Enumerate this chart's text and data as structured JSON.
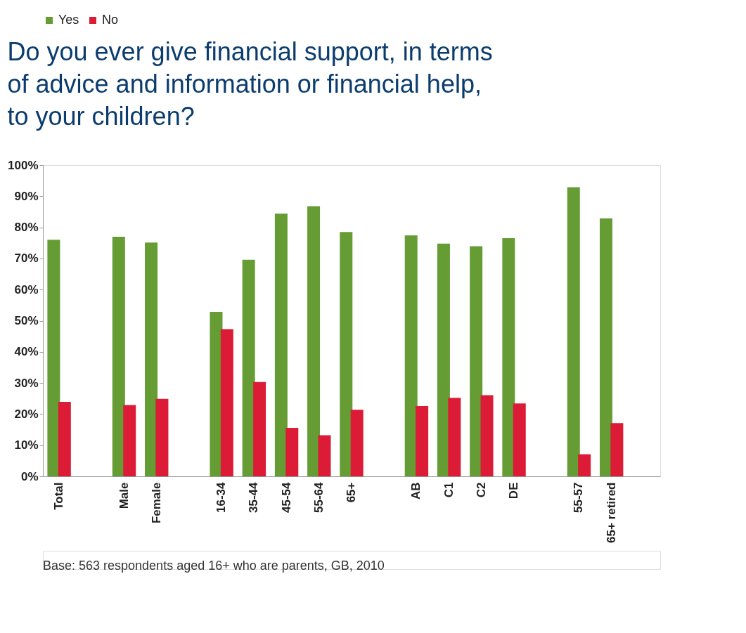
{
  "chart_data": {
    "type": "bar",
    "title": "Do you ever give financial support, in terms of advice and information or financial help, to your children?",
    "categories": [
      "Total",
      null,
      "Male",
      "Female",
      null,
      "16-34",
      "35-44",
      "45-54",
      "55-64",
      "65+",
      null,
      "AB",
      "C1",
      "C2",
      "DE",
      null,
      "55-57",
      "65+ retired",
      null
    ],
    "series": [
      {
        "name": "Yes",
        "color": "#659d34",
        "values": [
          76.0,
          null,
          77.0,
          75.1,
          null,
          52.8,
          69.6,
          84.4,
          86.8,
          78.5,
          null,
          77.4,
          74.8,
          73.9,
          76.5,
          null,
          92.9,
          82.9,
          null
        ]
      },
      {
        "name": "No",
        "color": "#dc1c37",
        "values": [
          23.9,
          null,
          22.9,
          24.9,
          null,
          47.3,
          30.3,
          15.6,
          13.2,
          21.4,
          null,
          22.6,
          25.2,
          26.1,
          23.4,
          null,
          7.1,
          17.1,
          null
        ]
      }
    ],
    "ylim": [
      0,
      100
    ],
    "yticks": [
      {
        "value": 0,
        "label": "0%"
      },
      {
        "value": 10,
        "label": "10%"
      },
      {
        "value": 20,
        "label": "20%"
      },
      {
        "value": 30,
        "label": "30%"
      },
      {
        "value": 40,
        "label": "40%"
      },
      {
        "value": 50,
        "label": "50%"
      },
      {
        "value": 60,
        "label": "60%"
      },
      {
        "value": 70,
        "label": "70%"
      },
      {
        "value": 80,
        "label": "80%"
      },
      {
        "value": 90,
        "label": "90%"
      },
      {
        "value": 100,
        "label": "100%"
      }
    ],
    "legend": "top",
    "grid": false,
    "annotations": [
      "Base: 563 respondents aged 16+ who are parents, GB, 2010"
    ]
  }
}
